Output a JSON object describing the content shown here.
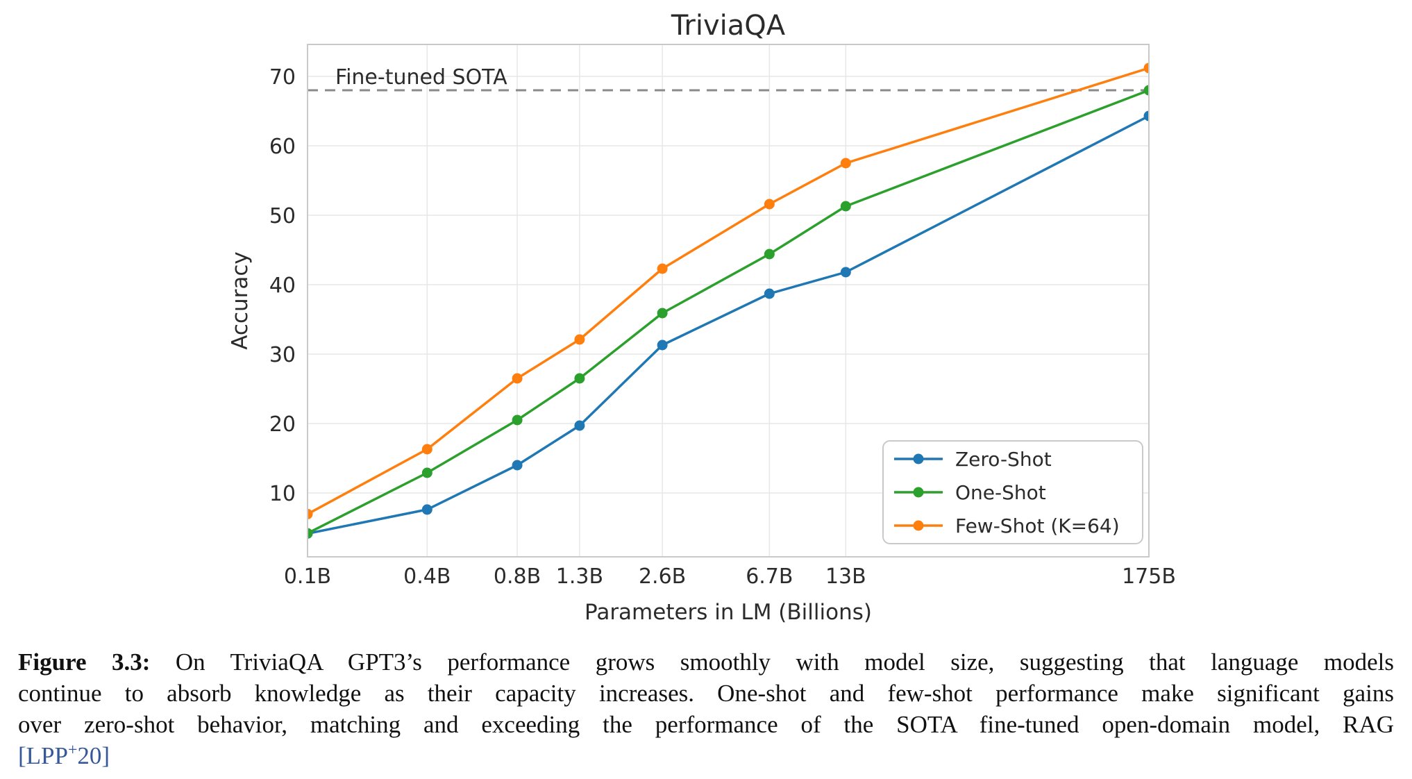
{
  "figure": {
    "title": "TriviaQA",
    "x_axis_label": "Parameters in LM (Billions)",
    "y_axis_label": "Accuracy",
    "sota_label": "Fine-tuned SOTA"
  },
  "chart_data": {
    "type": "line",
    "title": "TriviaQA",
    "xlabel": "Parameters in LM (Billions)",
    "ylabel": "Accuracy",
    "x_scale": "log",
    "grid": true,
    "legend_position": "lower right",
    "x_tick_labels": [
      "0.1B",
      "0.4B",
      "0.8B",
      "1.3B",
      "2.6B",
      "6.7B",
      "13B",
      "175B"
    ],
    "x_values": [
      0.125,
      0.35,
      0.76,
      1.3,
      2.65,
      6.66,
      12.85,
      174.6
    ],
    "y_ticks": [
      10,
      20,
      30,
      40,
      50,
      60,
      70
    ],
    "ylim": [
      0.8,
      74.6
    ],
    "series": [
      {
        "name": "Zero-Shot",
        "color": "#1f77b4",
        "values": [
          4.15,
          7.61,
          14.0,
          19.7,
          31.3,
          38.7,
          41.8,
          64.3
        ]
      },
      {
        "name": "One-Shot",
        "color": "#2ca02c",
        "values": [
          4.19,
          12.9,
          20.5,
          26.5,
          35.9,
          44.4,
          51.3,
          68.0
        ]
      },
      {
        "name": "Few-Shot (K=64)",
        "color": "#ff7f0e",
        "values": [
          6.96,
          16.3,
          26.5,
          32.1,
          42.3,
          51.6,
          57.5,
          71.2
        ]
      }
    ],
    "reference_line": {
      "label": "Fine-tuned SOTA",
      "value": 68.0,
      "color": "#8a8a8a"
    }
  },
  "style_colors": {
    "grid": "#e7e7e7",
    "plot_border": "#c9c9c9",
    "tick_text": "#2b2b2b",
    "sota_text": "#444444",
    "citation_blue": "#35589a"
  },
  "caption": {
    "figure_label": "Figure 3.3:",
    "line1_rest": " On TriviaQA GPT3’s performance grows smoothly with model size, suggesting that language models",
    "line2": "continue to absorb knowledge as their capacity increases. One-shot and few-shot performance make significant gains",
    "line3": "over zero-shot behavior, matching and exceeding the performance of the SOTA fine-tuned open-domain model, RAG",
    "citation_pre": "[LPP",
    "citation_sup": "+",
    "citation_post": "20]"
  }
}
